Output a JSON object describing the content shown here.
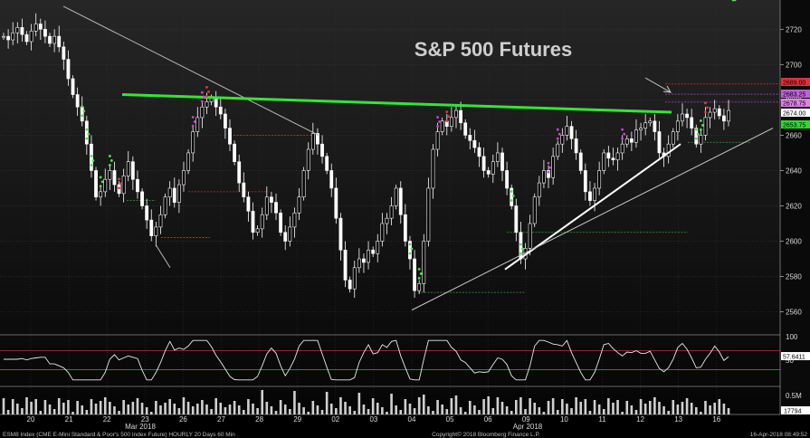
{
  "chart_data": [
    {
      "type": "candlestick",
      "title": "S&P 500 Futures",
      "ylim": [
        2548,
        2734
      ],
      "y_ticks": [
        2560,
        2580,
        2600,
        2620,
        2640,
        2660,
        2680,
        2700,
        2720
      ],
      "price_tags": [
        {
          "label": "2689.00",
          "value": 2689.0,
          "color": "#e0303a"
        },
        {
          "label": "2683.25",
          "value": 2683.25,
          "color": "#c060d8"
        },
        {
          "label": "2678.75",
          "value": 2678.75,
          "color": "#e080e8"
        },
        {
          "label": "2674.00",
          "value": 2674.0,
          "color": "#ffffff"
        },
        {
          "label": "2653.75",
          "value": 2653.75,
          "color": "#30d830"
        }
      ],
      "series": [
        {
          "values": [
            2716,
            2714,
            2718,
            2721,
            2717,
            2713,
            2719,
            2723,
            2720,
            2716,
            2712,
            2716,
            2710,
            2703,
            2692,
            2683,
            2676,
            2668,
            2655,
            2640,
            2625,
            2628,
            2635,
            2640,
            2632,
            2627,
            2637,
            2645,
            2635,
            2628,
            2620,
            2612,
            2603,
            2608,
            2615,
            2625,
            2630,
            2622,
            2632,
            2640,
            2650,
            2662,
            2670,
            2676,
            2679,
            2681,
            2676,
            2672,
            2664,
            2655,
            2645,
            2633,
            2625,
            2617,
            2605,
            2607,
            2615,
            2625,
            2622,
            2616,
            2605,
            2600,
            2608,
            2616,
            2625,
            2640,
            2652,
            2661,
            2655,
            2648,
            2640,
            2630,
            2613,
            2595,
            2578,
            2573,
            2585,
            2590,
            2588,
            2595,
            2593,
            2600,
            2610,
            2613,
            2620,
            2630,
            2615,
            2600,
            2590,
            2572,
            2576,
            2600,
            2630,
            2652,
            2662,
            2668,
            2665,
            2670,
            2674,
            2667,
            2660,
            2657,
            2653,
            2648,
            2640,
            2638,
            2645,
            2650,
            2640,
            2630,
            2620,
            2605,
            2590,
            2596,
            2610,
            2625,
            2633,
            2640,
            2636,
            2648,
            2655,
            2660,
            2665,
            2658,
            2650,
            2640,
            2628,
            2623,
            2630,
            2640,
            2650,
            2647,
            2646,
            2650,
            2655,
            2658,
            2656,
            2663,
            2664,
            2667,
            2668,
            2662,
            2650,
            2648,
            2655,
            2662,
            2668,
            2672,
            2670,
            2664,
            2655,
            2660,
            2670,
            2673,
            2675,
            2671,
            2668,
            2674
          ],
          "high": 2733,
          "low": 2552
        },
        {
          "type": "line",
          "ylim": [
            0,
            100
          ],
          "y_ticks": [
            50,
            100
          ],
          "last_value_label": "57.6411",
          "last_value": 57.64
        },
        {
          "type": "bar",
          "y_ticks_labels": [
            "0.5M"
          ],
          "last_value_label": "17794"
        }
      ],
      "x_tick_labels": [
        "20",
        "21",
        "22",
        "23",
        "26",
        "27",
        "28",
        "29",
        "02",
        "03",
        "04",
        "05",
        "06",
        "09",
        "10",
        "11",
        "12",
        "13",
        "16"
      ],
      "x_month_labels": [
        "Mar 2018",
        "Apr 2018"
      ]
    }
  ],
  "footer": {
    "left": "ESM8 Index (CME E-Mini Standard & Poor's 500 Index Future) HOURLY 20 Days 60 Min",
    "center": "Copyright© 2018 Bloomberg Finance L.P.",
    "right": "16-Apr-2018 08:49:52"
  },
  "colors": {
    "background": "#000000",
    "candle": "#ffffff",
    "resistance": "#33e633",
    "support": "#ffffff",
    "indicator": "#e8e8e8",
    "volume": "#d0d0d0",
    "setup_up": "#55dd55",
    "setup_down": "#e03a3a",
    "setup_count": "#cc44cc"
  }
}
